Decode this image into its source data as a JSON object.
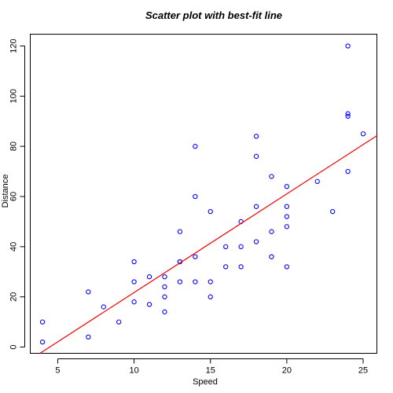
{
  "chart_data": {
    "type": "scatter",
    "title": "Scatter plot with best-fit line",
    "xlabel": "Speed",
    "ylabel": "Distance",
    "xlim": [
      3.2,
      25.9
    ],
    "ylim": [
      -2.5,
      124.7
    ],
    "xticks": [
      5,
      10,
      15,
      20,
      25
    ],
    "yticks": [
      0,
      20,
      40,
      60,
      80,
      100,
      120
    ],
    "point_color": "#0000ff",
    "line_color": "#ff0000",
    "grid": false,
    "series": [
      {
        "marker": "open-circle",
        "x": [
          4,
          4,
          7,
          7,
          8,
          9,
          10,
          10,
          10,
          11,
          11,
          12,
          12,
          12,
          12,
          13,
          13,
          13,
          13,
          14,
          14,
          14,
          14,
          15,
          15,
          15,
          16,
          16,
          17,
          17,
          17,
          18,
          18,
          18,
          18,
          19,
          19,
          19,
          20,
          20,
          20,
          20,
          20,
          22,
          23,
          24,
          24,
          24,
          24,
          25
        ],
        "y": [
          2,
          10,
          4,
          22,
          16,
          10,
          18,
          26,
          34,
          17,
          28,
          14,
          20,
          24,
          28,
          26,
          34,
          34,
          46,
          26,
          36,
          60,
          80,
          20,
          26,
          54,
          32,
          40,
          32,
          40,
          50,
          42,
          56,
          76,
          84,
          36,
          46,
          68,
          32,
          48,
          52,
          56,
          64,
          66,
          54,
          70,
          92,
          93,
          120,
          85
        ]
      }
    ],
    "fit_line": {
      "type": "linear",
      "intercept": -17.579,
      "slope": 3.932
    }
  }
}
